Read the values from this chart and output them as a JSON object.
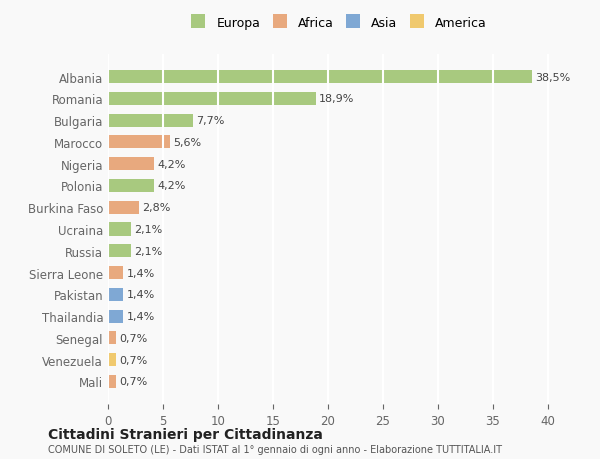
{
  "countries": [
    "Albania",
    "Romania",
    "Bulgaria",
    "Marocco",
    "Nigeria",
    "Polonia",
    "Burkina Faso",
    "Ucraina",
    "Russia",
    "Sierra Leone",
    "Pakistan",
    "Thailandia",
    "Senegal",
    "Venezuela",
    "Mali"
  ],
  "values": [
    38.5,
    18.9,
    7.7,
    5.6,
    4.2,
    4.2,
    2.8,
    2.1,
    2.1,
    1.4,
    1.4,
    1.4,
    0.7,
    0.7,
    0.7
  ],
  "labels": [
    "38,5%",
    "18,9%",
    "7,7%",
    "5,6%",
    "4,2%",
    "4,2%",
    "2,8%",
    "2,1%",
    "2,1%",
    "1,4%",
    "1,4%",
    "1,4%",
    "0,7%",
    "0,7%",
    "0,7%"
  ],
  "continents": [
    "Europa",
    "Europa",
    "Europa",
    "Africa",
    "Africa",
    "Europa",
    "Africa",
    "Europa",
    "Europa",
    "Africa",
    "Asia",
    "Asia",
    "Africa",
    "America",
    "Africa"
  ],
  "continent_colors": {
    "Europa": "#a8c97f",
    "Africa": "#e8a97e",
    "Asia": "#7fa8d4",
    "America": "#f0c96e"
  },
  "legend_order": [
    "Europa",
    "Africa",
    "Asia",
    "America"
  ],
  "title": "Cittadini Stranieri per Cittadinanza",
  "subtitle": "COMUNE DI SOLETO (LE) - Dati ISTAT al 1° gennaio di ogni anno - Elaborazione TUTTITALIA.IT",
  "xlim": [
    0,
    42
  ],
  "xticks": [
    0,
    5,
    10,
    15,
    20,
    25,
    30,
    35,
    40
  ],
  "background_color": "#f9f9f9",
  "grid_color": "#ffffff",
  "bar_height": 0.6
}
